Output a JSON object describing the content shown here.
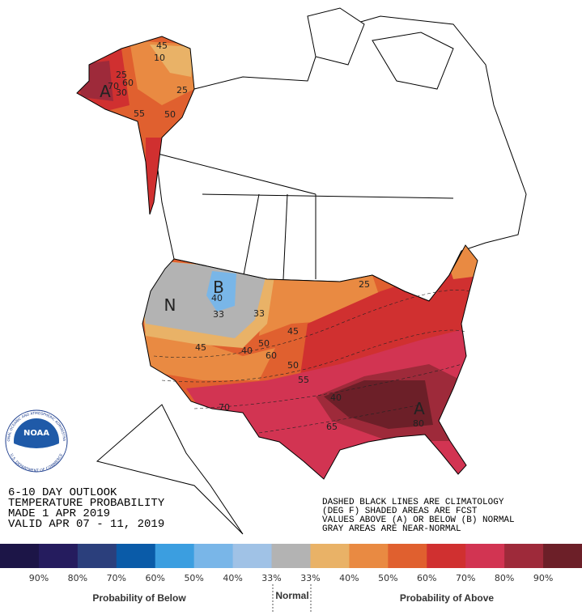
{
  "title_lines": [
    "6-10 DAY OUTLOOK",
    "TEMPERATURE PROBABILITY",
    "MADE  1 APR 2019",
    "VALID  APR 07 - 11, 2019"
  ],
  "notes": [
    "DASHED BLACK LINES ARE CLIMATOLOGY",
    "(DEG F) SHADED AREAS ARE FCST",
    "VALUES ABOVE (A) OR BELOW (B) NORMAL",
    "GRAY AREAS ARE NEAR-NORMAL"
  ],
  "logo": {
    "name": "NOAA",
    "ring_top": "NATIONAL OCEANIC AND ATMOSPHERIC ADMINISTRATION",
    "ring_bottom": "U.S. DEPARTMENT OF COMMERCE"
  },
  "map_labels": [
    "45",
    "10",
    "25",
    "60",
    "70",
    "A",
    "30",
    "25",
    "55",
    "50",
    "B",
    "N",
    "40",
    "33",
    "33",
    "40",
    "50",
    "60",
    "45",
    "45",
    "25",
    "50",
    "55",
    "40",
    "70",
    "65",
    "A",
    "80"
  ],
  "legend": {
    "colors": [
      "#1c1547",
      "#251c5e",
      "#2b3f7c",
      "#0a5ba8",
      "#3b9ee0",
      "#79b6e8",
      "#a0c2e6",
      "#b3b3b3",
      "#e9b267",
      "#e98a42",
      "#e0602f",
      "#d03030",
      "#d23452",
      "#9e2a3a",
      "#6c1f28"
    ],
    "labels": [
      "90%",
      "80%",
      "70%",
      "60%",
      "50%",
      "40%",
      "33%",
      "33%",
      "40%",
      "50%",
      "60%",
      "70%",
      "80%",
      "90%"
    ],
    "below_title": "Probability of Below",
    "normal_title": "Normal",
    "above_title": "Probability of Above"
  }
}
